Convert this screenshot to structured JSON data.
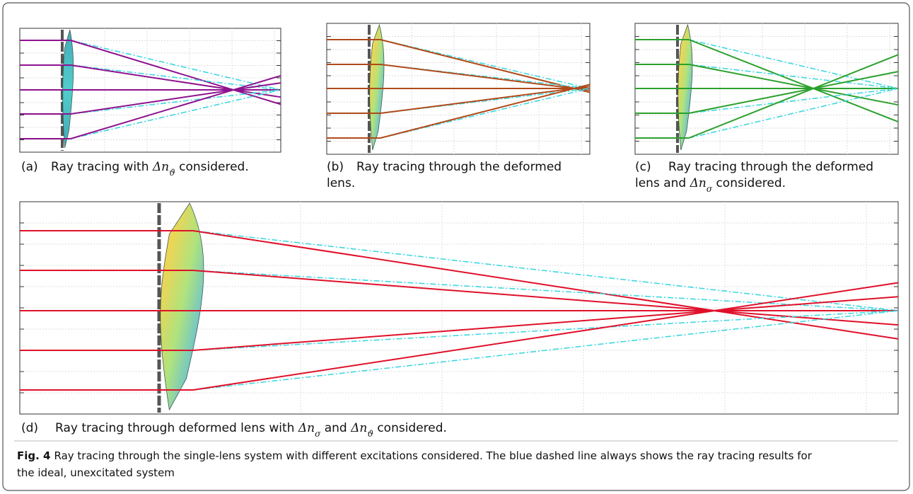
{
  "panels": [
    {
      "label": "(a)",
      "caption": [
        [
          {
            "text": "Ray tracing with "
          },
          {
            "base": "Δn",
            "sub": "ϑ"
          },
          {
            "text": " considered."
          }
        ]
      ]
    },
    {
      "label": "(b)",
      "caption": [
        [
          {
            "text": "Ray tracing through the deformed"
          }
        ],
        [
          {
            "text": "lens."
          }
        ]
      ]
    },
    {
      "label": "(c)",
      "caption": [
        [
          {
            "text": "Ray tracing through the deformed"
          }
        ],
        [
          {
            "text": "lens and "
          },
          {
            "base": "Δn",
            "sub": "σ"
          },
          {
            "text": " considered."
          }
        ]
      ]
    },
    {
      "label": "(d)",
      "caption": [
        [
          {
            "text": "Ray tracing through deformed lens with "
          },
          {
            "base": "Δn",
            "sub": "σ"
          },
          {
            "text": " and "
          },
          {
            "base": "Δn",
            "sub": "ϑ"
          },
          {
            "text": " considered."
          }
        ]
      ]
    }
  ],
  "figure_caption": {
    "label": "Fig. 4",
    "lines": [
      "Ray tracing through the single-lens system with different excitations considered. The blue dashed line always shows the ray tracing results for",
      "the ideal, unexcitated system"
    ]
  }
}
